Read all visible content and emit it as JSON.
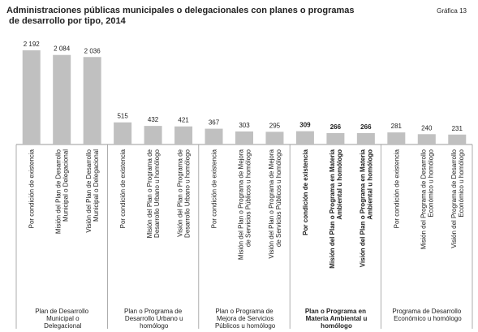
{
  "chart_data": {
    "type": "bar",
    "title": "Administraciones públicas municipales o delegacionales con planes o programas de desarrollo por tipo, 2014",
    "figure_label": "Gráfica 13",
    "categories": [
      "Por condición de existencia",
      "Misión del Plan de Desarrollo Municipal o Delegacional",
      "Visión del Plan de Desarrollo Municipal o Delegacional",
      "Por condición de existencia",
      "Misión del Plan o Programa de Desarrollo Urbano u homólogo",
      "Visión del Plan o Programa de Desarrollo Urbano u homólogo",
      "Por condición de existencia",
      "Misión del Plan o Programa de Mejora de Servicios Públicos u homólogo",
      "Visión del Plan o Programa de Mejora de Servicios Públicos u homólogo",
      "Por condición de existencia",
      "Misión del Plan o Programa en Materia Ambiental u homólogo",
      "Visión del Plan o Programa en Materia Ambiental u homólogo",
      "Por condición de existencia",
      "Misión del Programa de Desarrollo Económico u homólogo",
      "Visión del Programa de Desarrollo Económico u homólogo"
    ],
    "groups": [
      "Plan de Desarrollo Municipal o Delegacional",
      "Plan o Programa de Desarrollo Urbano u homólogo",
      "Plan o Programa de Mejora de Servicios Públicos u homólogo",
      "Plan o Programa en Materia Ambiental u homólogo",
      "Programa de Desarrollo Económico u homólogo"
    ],
    "values": [
      2192,
      2084,
      2036,
      515,
      432,
      421,
      367,
      303,
      295,
      309,
      266,
      266,
      281,
      240,
      231
    ],
    "value_labels": [
      "2 192",
      "2 084",
      "2 036",
      "515",
      "432",
      "421",
      "367",
      "303",
      "295",
      "309",
      "266",
      "266",
      "281",
      "240",
      "231"
    ],
    "color": "#c0c0c0"
  }
}
